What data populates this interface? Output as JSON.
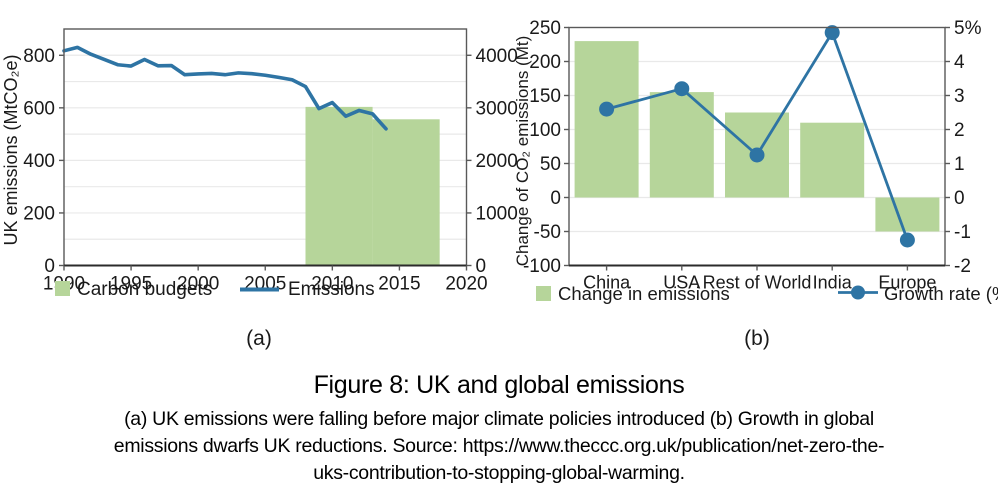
{
  "figure": {
    "title": "Figure 8: UK and global emissions",
    "caption_lines": [
      "(a) UK emissions were falling before major climate policies introduced (b) Growth in global",
      "emissions dwarfs UK reductions. Source: https://www.theccc.org.uk/publication/net-zero-the-",
      "uks-contribution-to-stopping-global-warming."
    ]
  },
  "colors": {
    "bar_green": "#b6d59a",
    "line_blue": "#2e74a4",
    "grid": "#e9e9e9",
    "spine": "#595959",
    "axis_dark": "#2b2b2b",
    "text": "#1a1a1a"
  },
  "chart_data": [
    {
      "id": "uk-emissions",
      "type": "bar+line",
      "sublabel": "(a)",
      "ylabel_left": "UK emissions (MtCO₂e)",
      "left_axis": {
        "min": 0,
        "max": 900,
        "ticks": [
          0,
          200,
          400,
          600,
          800
        ]
      },
      "right_axis": {
        "min": 0,
        "max": 4500,
        "ticks": [
          0,
          1000,
          2000,
          3000,
          4000
        ]
      },
      "x_axis": {
        "min": 1990,
        "max": 2020,
        "ticks": [
          1990,
          1995,
          2000,
          2005,
          2010,
          2015,
          2020
        ]
      },
      "bars_note": "carbon budget totals plotted on right axis (MtCO2e)",
      "bars": [
        {
          "start": 2008,
          "end": 2013,
          "total": 3018
        },
        {
          "start": 2013,
          "end": 2018,
          "total": 2782
        }
      ],
      "line": {
        "name": "Emissions",
        "start_year": 1990,
        "values": [
          817,
          830,
          804,
          784,
          764,
          759,
          784,
          760,
          761,
          726,
          729,
          731,
          726,
          733,
          730,
          724,
          716,
          707,
          681,
          597,
          620,
          568,
          590,
          577,
          520
        ]
      },
      "legend": [
        {
          "label": "Carbon budgets",
          "marker": "swatch"
        },
        {
          "label": "Emissions",
          "marker": "line"
        }
      ]
    },
    {
      "id": "global-emissions",
      "type": "bar+line-dot",
      "sublabel": "(b)",
      "ylabel_left": "Change of CO₂ emissions (Mt)",
      "left_axis": {
        "min": -100,
        "max": 250,
        "ticks": [
          -100,
          -50,
          0,
          50,
          100,
          150,
          200,
          250
        ]
      },
      "right_axis": {
        "min": -2,
        "max": 5,
        "ticks": [
          -2,
          -1,
          0,
          1,
          2,
          3,
          4,
          5
        ],
        "tick_labels": [
          "-2",
          "-1",
          "0",
          "1",
          "2",
          "3",
          "4",
          "5%"
        ]
      },
      "categories": [
        "China",
        "USA",
        "Rest of World",
        "India",
        "Europe"
      ],
      "bars": [
        230,
        155,
        125,
        110,
        -50
      ],
      "growth_rate": [
        2.6,
        3.2,
        1.25,
        4.85,
        -1.25
      ],
      "legend": [
        {
          "label": "Change in emissions",
          "marker": "swatch"
        },
        {
          "label": "Growth rate (%)",
          "marker": "line-dot"
        }
      ]
    }
  ]
}
